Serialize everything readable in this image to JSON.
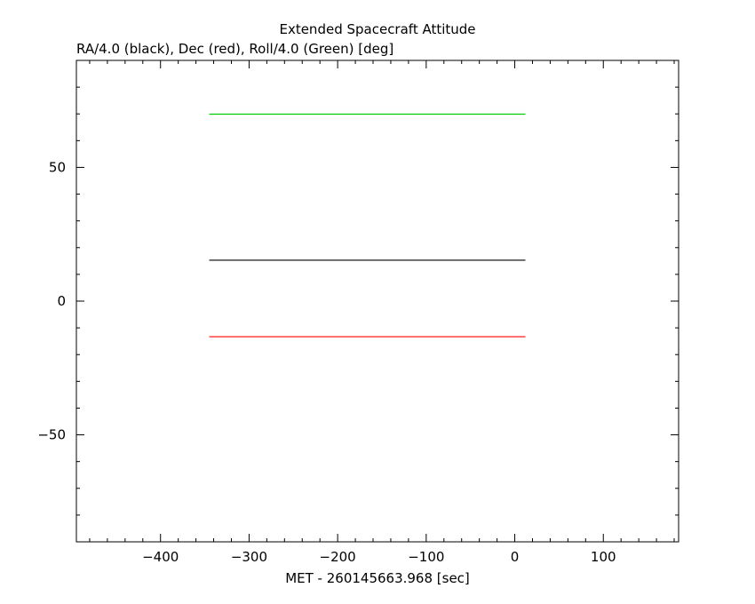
{
  "chart_data": {
    "type": "line",
    "title": "Extended Spacecraft Attitude",
    "ylabel": "RA/4.0 (black), Dec (red), Roll/4.0 (Green) [deg]",
    "xlabel": "MET - 260145663.968 [sec]",
    "xlim": [
      -495,
      185
    ],
    "ylim": [
      -90,
      90
    ],
    "x_ticks": [
      -400,
      -300,
      -200,
      -100,
      0,
      100
    ],
    "x_tick_labels": [
      "−400",
      "−300",
      "−200",
      "−100",
      "0",
      "100"
    ],
    "y_ticks": [
      50,
      0,
      -50
    ],
    "y_tick_labels": [
      "50",
      "0",
      "−50"
    ],
    "x_minor_step": 20,
    "y_minor_step": 10,
    "grid": false,
    "series": [
      {
        "name": "RA/4.0",
        "color": "#000000",
        "x": [
          -345,
          12
        ],
        "y": [
          15.3,
          15.3
        ]
      },
      {
        "name": "Dec",
        "color": "#ff0000",
        "x": [
          -345,
          12
        ],
        "y": [
          -13.3,
          -13.3
        ]
      },
      {
        "name": "Roll/4.0",
        "color": "#00cc00",
        "x": [
          -345,
          12
        ],
        "y": [
          69.9,
          69.9
        ]
      }
    ]
  }
}
